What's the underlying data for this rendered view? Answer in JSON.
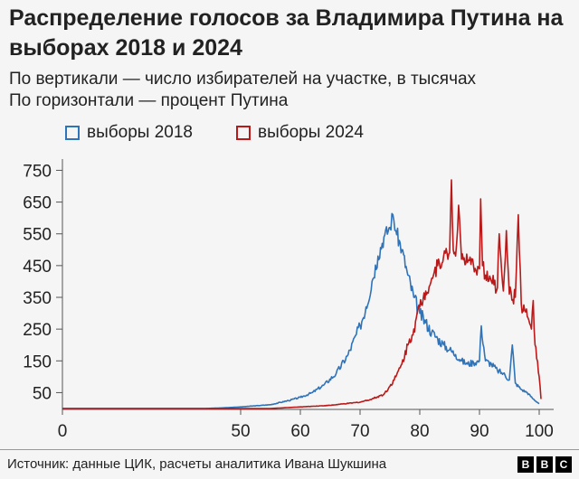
{
  "chart_data": {
    "type": "line",
    "title": "Распределение голосов за Владимира Путина на выборах 2018 и 2024",
    "subtitle": [
      "По вертикали — число избирателей на участке, в тысячах",
      "По горизонтали — процент Путина"
    ],
    "x_ticks": [
      "0",
      "50",
      "60",
      "70",
      "80",
      "90",
      "100"
    ],
    "y_ticks": [
      "750",
      "650",
      "550",
      "450",
      "350",
      "250",
      "150",
      "50"
    ],
    "xlim": [
      0,
      100
    ],
    "ylim": [
      0,
      780
    ],
    "legend_position": "top-left",
    "series": [
      {
        "name": "выборы 2018",
        "color": "#2f73b9",
        "x": [
          0,
          40,
          45,
          50,
          55,
          58,
          60,
          62,
          64,
          66,
          68,
          70,
          71,
          72,
          73,
          74,
          75,
          75.5,
          76,
          77,
          78,
          79,
          80,
          81,
          82,
          83,
          84,
          85,
          86,
          87,
          88,
          89,
          90,
          90.3,
          91,
          92,
          93,
          94,
          95,
          95.5,
          96,
          97,
          98,
          99,
          100
        ],
        "y": [
          0,
          0,
          2,
          5,
          12,
          25,
          35,
          50,
          75,
          110,
          170,
          260,
          320,
          400,
          480,
          540,
          570,
          610,
          560,
          500,
          420,
          350,
          300,
          270,
          240,
          220,
          200,
          185,
          170,
          150,
          140,
          145,
          150,
          260,
          150,
          140,
          120,
          110,
          90,
          200,
          80,
          60,
          50,
          30,
          15
        ]
      },
      {
        "name": "выборы 2024",
        "color": "#bb1919",
        "x": [
          0,
          55,
          60,
          65,
          70,
          72,
          74,
          75,
          76,
          77,
          78,
          79,
          80,
          81,
          82,
          83,
          84,
          85,
          85.3,
          85.6,
          86,
          86.5,
          87,
          88,
          89,
          90,
          90.2,
          90.5,
          91,
          92,
          93,
          93.3,
          94,
          94.5,
          95,
          96,
          96.5,
          97,
          98,
          98.7,
          99,
          99.3,
          100,
          100.3
        ],
        "y": [
          0,
          0,
          5,
          10,
          20,
          30,
          45,
          70,
          100,
          140,
          200,
          250,
          320,
          370,
          410,
          450,
          480,
          490,
          720,
          500,
          480,
          640,
          470,
          460,
          450,
          440,
          660,
          450,
          420,
          400,
          380,
          550,
          370,
          560,
          360,
          350,
          610,
          330,
          290,
          250,
          340,
          200,
          100,
          30
        ]
      }
    ]
  },
  "source": "Источник: данные ЦИК, расчеты аналитика Ивана Шукшина",
  "logo": [
    "B",
    "B",
    "C"
  ]
}
